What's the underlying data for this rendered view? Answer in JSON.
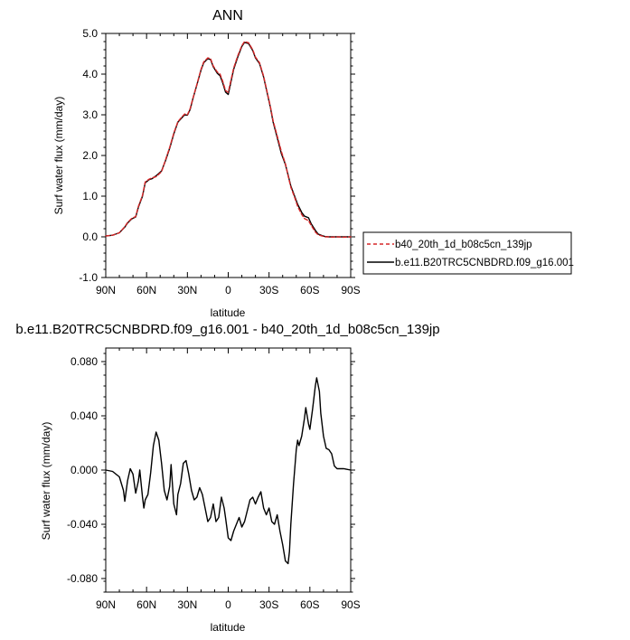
{
  "colors": {
    "case1": "#d62728",
    "case2": "#000000"
  },
  "chart_data": [
    {
      "type": "line",
      "title": "ANN",
      "xlabel": "latitude",
      "ylabel": "Surf water flux (mm/day)",
      "xlim": [
        90,
        -90
      ],
      "ylim": [
        -1.0,
        5.0
      ],
      "xticks": [
        90,
        60,
        30,
        0,
        -30,
        -60,
        -90
      ],
      "xtick_labels": [
        "90N",
        "60N",
        "30N",
        "0",
        "30S",
        "60S",
        "90S"
      ],
      "yticks": [
        -1.0,
        0.0,
        1.0,
        2.0,
        3.0,
        4.0,
        5.0
      ],
      "ytick_labels": [
        "-1.0",
        "0.0",
        "1.0",
        "2.0",
        "3.0",
        "4.0",
        "5.0"
      ],
      "legend": {
        "placement": "right"
      },
      "series": [
        {
          "name": "b40_20th_1d_b08c5cn_139jp",
          "style": "dashed",
          "color": "#d62728",
          "x": [
            90,
            85,
            80,
            76,
            74,
            71,
            68,
            66,
            63,
            61,
            58,
            56,
            53,
            49,
            46,
            43,
            40,
            37,
            34,
            32,
            30,
            28,
            26,
            23,
            20,
            18,
            15,
            13,
            11,
            8,
            6,
            4,
            2,
            0,
            -2,
            -4,
            -7,
            -10,
            -12,
            -15,
            -18,
            -20,
            -23,
            -26,
            -29,
            -31,
            -33,
            -36,
            -39,
            -42,
            -44,
            -46,
            -49,
            -51,
            -54,
            -56,
            -59,
            -61,
            -64,
            -66,
            -69,
            -71,
            -74,
            -76,
            -80,
            -85,
            -90
          ],
          "y": [
            0.02,
            0.04,
            0.1,
            0.25,
            0.35,
            0.45,
            0.5,
            0.75,
            1.02,
            1.35,
            1.42,
            1.45,
            1.48,
            1.6,
            1.9,
            2.2,
            2.55,
            2.83,
            2.95,
            3.02,
            3.0,
            3.15,
            3.4,
            3.75,
            4.12,
            4.3,
            4.4,
            4.38,
            4.2,
            4.05,
            4.0,
            3.82,
            3.6,
            3.55,
            3.85,
            4.15,
            4.45,
            4.7,
            4.8,
            4.77,
            4.6,
            4.42,
            4.28,
            3.95,
            3.5,
            3.2,
            2.85,
            2.48,
            2.1,
            1.8,
            1.5,
            1.22,
            0.95,
            0.75,
            0.55,
            0.45,
            0.4,
            0.28,
            0.12,
            0.05,
            0.02,
            0.0,
            0.0,
            -0.01,
            0.0,
            -0.01,
            0.0
          ]
        },
        {
          "name": "b.e11.B20TRC5CNBDRD.f09_g16.001",
          "style": "solid",
          "color": "#000000",
          "x": [
            90,
            85,
            80,
            76,
            74,
            71,
            68,
            66,
            63,
            61,
            58,
            56,
            53,
            49,
            46,
            43,
            40,
            37,
            34,
            32,
            30,
            28,
            26,
            23,
            20,
            18,
            15,
            13,
            11,
            8,
            6,
            4,
            2,
            0,
            -2,
            -4,
            -7,
            -10,
            -12,
            -15,
            -18,
            -20,
            -23,
            -26,
            -29,
            -31,
            -33,
            -36,
            -39,
            -42,
            -44,
            -46,
            -49,
            -51,
            -54,
            -56,
            -59,
            -61,
            -64,
            -66,
            -69,
            -71,
            -74,
            -76,
            -80,
            -85,
            -90
          ],
          "y": [
            0.02,
            0.04,
            0.1,
            0.24,
            0.34,
            0.44,
            0.49,
            0.73,
            1.0,
            1.33,
            1.41,
            1.43,
            1.5,
            1.62,
            1.88,
            2.18,
            2.53,
            2.82,
            2.93,
            3.0,
            2.99,
            3.13,
            3.39,
            3.74,
            4.1,
            4.28,
            4.38,
            4.36,
            4.18,
            4.02,
            3.96,
            3.78,
            3.56,
            3.5,
            3.81,
            4.12,
            4.42,
            4.68,
            4.78,
            4.75,
            4.58,
            4.4,
            4.26,
            3.93,
            3.48,
            3.18,
            2.82,
            2.44,
            2.05,
            1.78,
            1.52,
            1.25,
            0.98,
            0.8,
            0.6,
            0.51,
            0.47,
            0.32,
            0.16,
            0.07,
            0.03,
            0.01,
            0.0,
            0.0,
            0.0,
            0.0,
            0.0
          ]
        }
      ]
    },
    {
      "type": "line",
      "title": "b.e11.B20TRC5CNBDRD.f09_g16.001 - b40_20th_1d_b08c5cn_139jp",
      "xlabel": "latitude",
      "ylabel": "Surf water flux (mm/day)",
      "xlim": [
        90,
        -90
      ],
      "ylim": [
        -0.09,
        0.09
      ],
      "xticks": [
        90,
        60,
        30,
        0,
        -30,
        -60,
        -90
      ],
      "xtick_labels": [
        "90N",
        "60N",
        "30N",
        "0",
        "30S",
        "60S",
        "90S"
      ],
      "yticks": [
        -0.08,
        -0.04,
        0.0,
        0.04,
        0.08
      ],
      "ytick_labels": [
        "-0.080",
        "-0.040",
        "0.000",
        "0.040",
        "0.080"
      ],
      "series": [
        {
          "style": "solid",
          "color": "#000000",
          "x": [
            90,
            85,
            80,
            77,
            76,
            74,
            72,
            70,
            68,
            66,
            65,
            63,
            62,
            61,
            59,
            57,
            55,
            53,
            51,
            49,
            47,
            45,
            43,
            42,
            40,
            38,
            37,
            35,
            33,
            31,
            29,
            27,
            25,
            23,
            21,
            19,
            17,
            15,
            13,
            11,
            9,
            7,
            5,
            3,
            2,
            0,
            -2,
            -4,
            -6,
            -8,
            -10,
            -12,
            -14,
            -16,
            -18,
            -20,
            -22,
            -24,
            -26,
            -28,
            -30,
            -32,
            -34,
            -36,
            -38,
            -40,
            -42,
            -44,
            -45,
            -46,
            -48,
            -50,
            -51,
            -52,
            -54,
            -56,
            -57,
            -59,
            -60,
            -62,
            -64,
            -65,
            -67,
            -68,
            -70,
            -72,
            -74,
            -76,
            -78,
            -80,
            -82,
            -85,
            -90
          ],
          "y": [
            0.0,
            -0.001,
            -0.005,
            -0.015,
            -0.023,
            -0.008,
            0.001,
            -0.003,
            -0.017,
            -0.008,
            0.0,
            -0.02,
            -0.028,
            -0.022,
            -0.018,
            -0.002,
            0.018,
            0.028,
            0.022,
            0.005,
            -0.015,
            -0.022,
            -0.012,
            0.004,
            -0.025,
            -0.033,
            -0.018,
            -0.01,
            0.005,
            0.007,
            -0.003,
            -0.015,
            -0.022,
            -0.02,
            -0.013,
            -0.018,
            -0.028,
            -0.038,
            -0.035,
            -0.025,
            -0.038,
            -0.035,
            -0.02,
            -0.028,
            -0.035,
            -0.05,
            -0.052,
            -0.045,
            -0.04,
            -0.035,
            -0.042,
            -0.038,
            -0.03,
            -0.022,
            -0.02,
            -0.025,
            -0.02,
            -0.016,
            -0.028,
            -0.033,
            -0.028,
            -0.038,
            -0.04,
            -0.033,
            -0.045,
            -0.055,
            -0.067,
            -0.069,
            -0.06,
            -0.04,
            -0.01,
            0.015,
            0.022,
            0.018,
            0.025,
            0.038,
            0.046,
            0.034,
            0.03,
            0.045,
            0.062,
            0.068,
            0.058,
            0.042,
            0.025,
            0.016,
            0.015,
            0.012,
            0.003,
            0.001,
            0.001,
            0.001,
            0.0
          ]
        }
      ]
    }
  ]
}
